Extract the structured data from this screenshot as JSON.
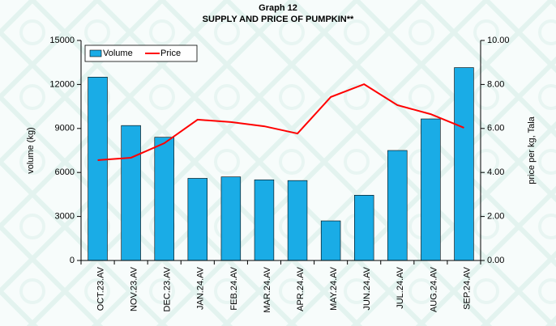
{
  "chart_data": {
    "type": "bar",
    "title": "Graph 12",
    "subtitle": "SUPPLY AND PRICE OF PUMPKIN**",
    "y_label": "volume (kg)",
    "y2_label": "price per kg, Tala",
    "categories": [
      "OCT.23.AV",
      "NOV.23.AV",
      "DEC.23.AV",
      "JAN.24.AV",
      "FEB.24.AV",
      "MAR.24.AV",
      "APR.24.AV",
      "MAY.24.AV",
      "JUN.24.AV",
      "JUL.24.AV",
      "AUG.24.AV",
      "SEP.24.AV"
    ],
    "series": [
      {
        "name": "Volume",
        "type": "bar",
        "color": "#1aace6",
        "values": [
          12500,
          9200,
          8400,
          5600,
          5700,
          5500,
          5450,
          2700,
          4450,
          7500,
          9650,
          13150
        ]
      },
      {
        "name": "Price",
        "type": "line",
        "axis": "y2",
        "color": "#ff0000",
        "values": [
          4.56,
          4.67,
          5.33,
          6.4,
          6.29,
          6.1,
          5.77,
          7.43,
          8.01,
          7.06,
          6.65,
          6.03
        ]
      }
    ],
    "ylim": [
      0,
      15000
    ],
    "yticks": [
      0,
      3000,
      6000,
      9000,
      12000,
      15000
    ],
    "y2lim": [
      0,
      10
    ],
    "y2ticks": [
      {
        "value": 0,
        "label": "0.00"
      },
      {
        "value": 2,
        "label": "2.00"
      },
      {
        "value": 4,
        "label": "4.00"
      },
      {
        "value": 6,
        "label": "6.00"
      },
      {
        "value": 8,
        "label": "8.00"
      },
      {
        "value": 10,
        "label": "10.00"
      }
    ],
    "legend": "top-left",
    "grid": false
  }
}
